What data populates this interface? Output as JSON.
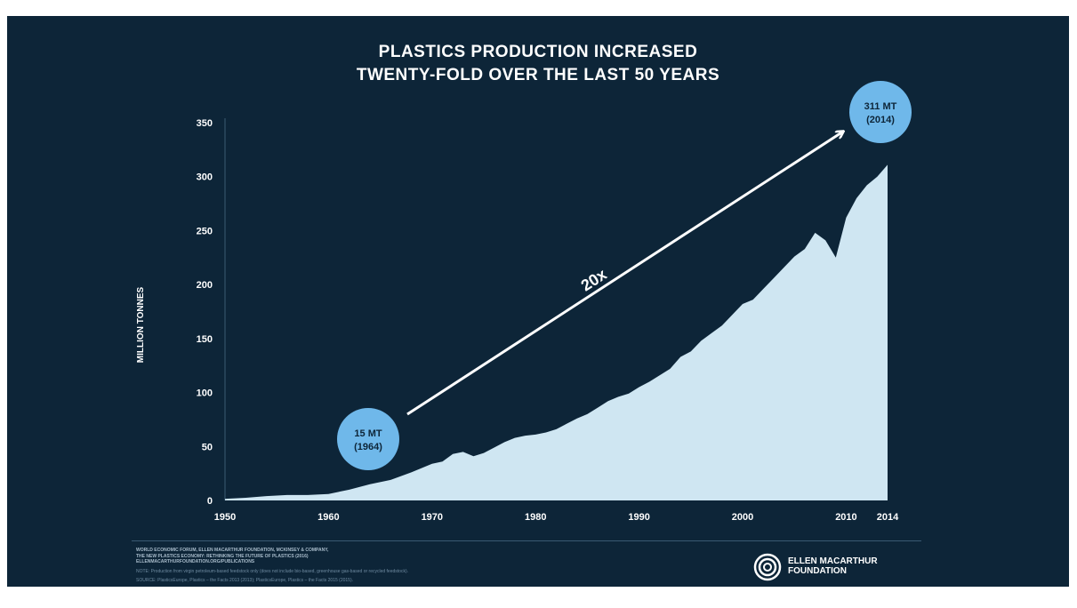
{
  "title": {
    "line1": "PLASTICS PRODUCTION INCREASED",
    "line2": "TWENTY-FOLD OVER THE LAST 50 YEARS"
  },
  "chart_data": {
    "type": "area",
    "title": "PLASTICS PRODUCTION INCREASED TWENTY-FOLD OVER THE LAST 50 YEARS",
    "xlabel": "",
    "ylabel": "MILLION TONNES",
    "xlim": [
      1950,
      2014
    ],
    "ylim": [
      0,
      350
    ],
    "x_ticks": [
      "1950",
      "1960",
      "1970",
      "1980",
      "1990",
      "2000",
      "2010",
      "2014"
    ],
    "y_ticks": [
      "0",
      "50",
      "100",
      "150",
      "200",
      "250",
      "300",
      "350"
    ],
    "grid": false,
    "series": [
      {
        "color": "#cfe6f2",
        "x": [
          1950,
          1952,
          1954,
          1956,
          1958,
          1960,
          1962,
          1964,
          1966,
          1968,
          1970,
          1971,
          1972,
          1973,
          1974,
          1975,
          1976,
          1977,
          1978,
          1979,
          1980,
          1981,
          1982,
          1983,
          1984,
          1985,
          1986,
          1987,
          1988,
          1989,
          1990,
          1991,
          1992,
          1993,
          1994,
          1995,
          1996,
          1997,
          1998,
          1999,
          2000,
          2001,
          2002,
          2003,
          2004,
          2005,
          2006,
          2007,
          2008,
          2009,
          2010,
          2011,
          2012,
          2013,
          2014
        ],
        "y": [
          1.5,
          2.5,
          4,
          5,
          5,
          6,
          10,
          15,
          19,
          26,
          34,
          36,
          43,
          45,
          41,
          44,
          49,
          54,
          58,
          60,
          61,
          63,
          66,
          71,
          76,
          80,
          86,
          92,
          96,
          99,
          105,
          110,
          116,
          122,
          133,
          138,
          148,
          155,
          162,
          172,
          182,
          186,
          196,
          206,
          216,
          226,
          233,
          248,
          241,
          225,
          262,
          280,
          292,
          300,
          311
        ]
      }
    ],
    "annotations": [
      {
        "text_line1": "15 MT",
        "text_line2": "(1964)",
        "x": 1964,
        "y": 15
      },
      {
        "text_line1": "311 MT",
        "text_line2": "(2014)",
        "x": 2014,
        "y": 311
      },
      {
        "text": "20x"
      }
    ]
  },
  "footer": {
    "source_line1": "WORLD ECONOMIC FORUM, ELLEN MACARTHUR FOUNDATION, MCKINSEY & COMPANY,",
    "source_line2": "THE NEW PLASTICS ECONOMY: RETHINKING THE FUTURE OF PLASTICS (2016)",
    "source_line3": "ELLENMACARTHURFOUNDATION.ORG/PUBLICATIONS",
    "note_line1": "NOTE: Production from virgin petroleum-based feedstock only (does not include bio-based, greenhouse gas-based or recycled feedstock).",
    "note_line2": "SOURCE: PlasticsEurope, Plastics – the Facts 2013 (2013); PlasticsEurope, Plastics – the Facts 2015 (2015).",
    "logo_line1": "ELLEN MACARTHUR",
    "logo_line2": "FOUNDATION"
  },
  "colors": {
    "background": "#0d2538",
    "area": "#cfe6f2",
    "bubble": "#6fb8ea",
    "text": "#ffffff"
  }
}
